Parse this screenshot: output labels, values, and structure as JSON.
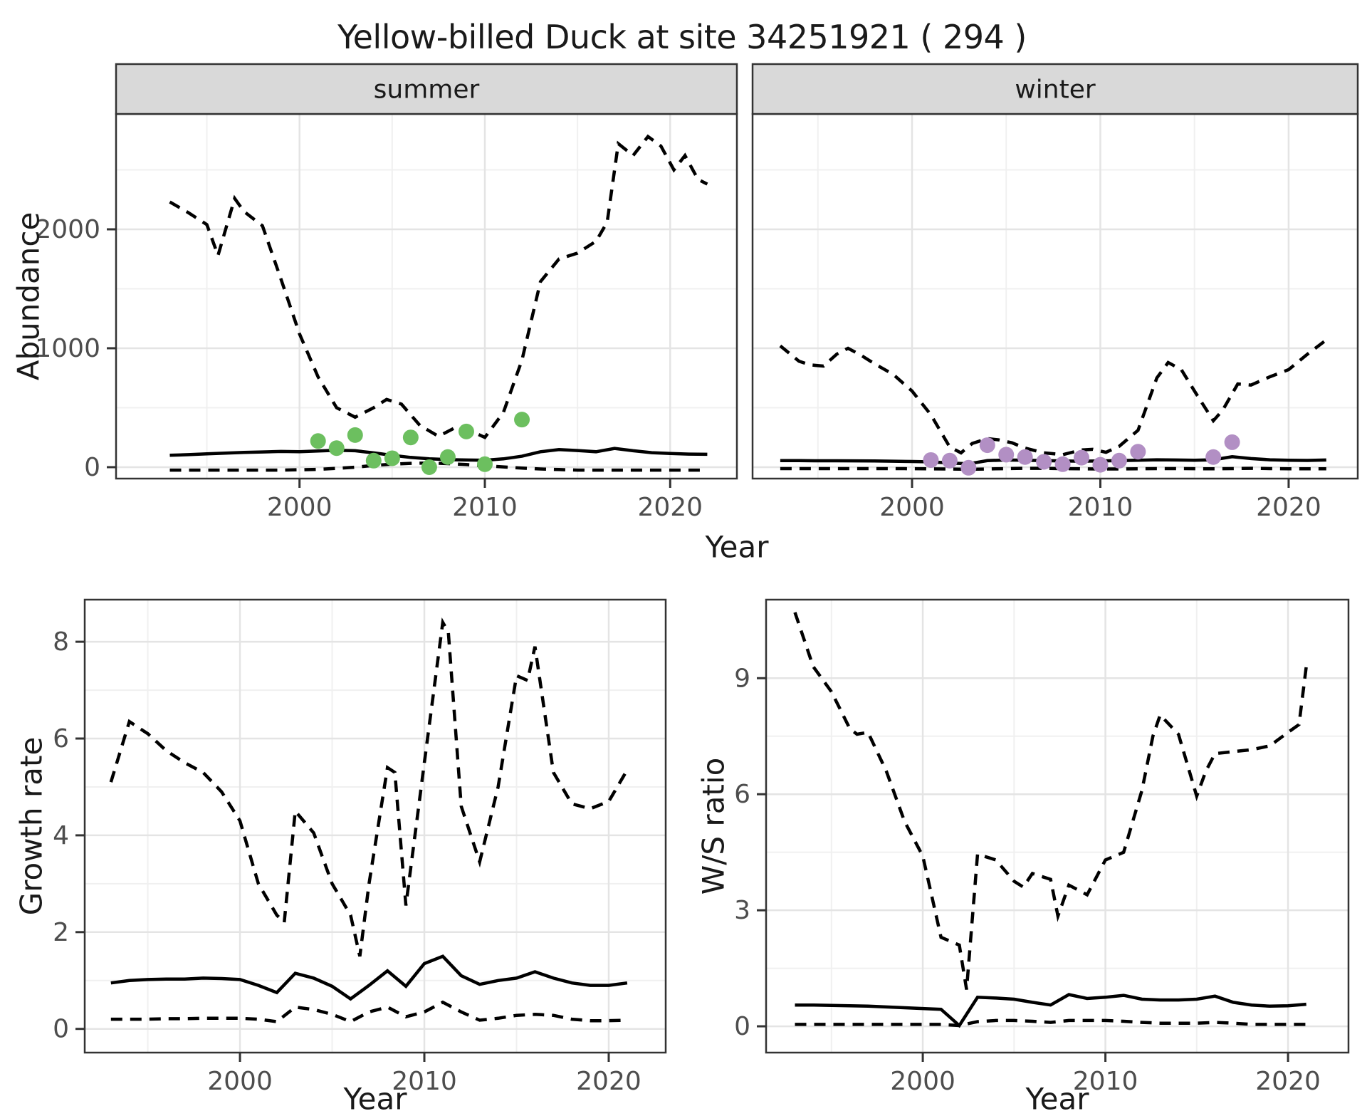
{
  "title": "Yellow-billed Duck at site 34251921 ( 294 )",
  "axis_labels": {
    "y_top": "Abundance",
    "x": "Year",
    "y_growth": "Growth rate",
    "y_ws": "W/S ratio"
  },
  "colors": {
    "summer_points": "#6CBF5F",
    "winter_points": "#B28FC4",
    "line": "#000000",
    "strip_bg": "#D9D9D9",
    "panel_border": "#333333",
    "grid_major": "#E4E4E4",
    "grid_minor": "#F0F0F0",
    "tick_label": "#4D4D4D",
    "tick_mark": "#333333"
  },
  "chart_data": [
    {
      "type": "line",
      "strip": "summer",
      "ylabel": "Abundance",
      "xlabel": "Year",
      "xlim": [
        1990.1,
        2023.6
      ],
      "ylim": [
        -96,
        2970
      ],
      "x_ticks": [
        2000,
        2010,
        2020
      ],
      "x_minor": [
        1995,
        2005,
        2015
      ],
      "y_ticks": [
        0,
        1000,
        2000
      ],
      "y_minor": [
        500,
        1500,
        2500
      ],
      "series": [
        {
          "name": "upper-ci",
          "style": "dashed",
          "x": [
            1993,
            1994,
            1995,
            1995.6,
            1996.5,
            1997,
            1998,
            1999,
            2000,
            2001,
            2002,
            2003,
            2004,
            2004.7,
            2005.5,
            2006.5,
            2007.5,
            2008.5,
            2009.3,
            2010,
            2011,
            2012,
            2013,
            2014,
            2015,
            2016,
            2016.6,
            2017.2,
            2018,
            2018.8,
            2019.5,
            2020.2,
            2020.8,
            2021.5,
            2022
          ],
          "y": [
            2230,
            2140,
            2040,
            1780,
            2260,
            2150,
            2030,
            1580,
            1120,
            760,
            500,
            420,
            500,
            570,
            530,
            350,
            260,
            340,
            300,
            250,
            460,
            900,
            1560,
            1750,
            1800,
            1900,
            2060,
            2720,
            2620,
            2780,
            2700,
            2500,
            2620,
            2420,
            2380
          ]
        },
        {
          "name": "median",
          "style": "solid",
          "x": [
            1993,
            1994,
            1995,
            1996,
            1997,
            1998,
            1999,
            2000,
            2001,
            2002,
            2003,
            2004,
            2005,
            2006,
            2007,
            2008,
            2009,
            2010,
            2011,
            2012,
            2013,
            2014,
            2015,
            2016,
            2017,
            2018,
            2019,
            2020,
            2021,
            2022
          ],
          "y": [
            100,
            105,
            112,
            118,
            124,
            128,
            132,
            130,
            136,
            142,
            138,
            120,
            100,
            82,
            70,
            64,
            60,
            58,
            70,
            92,
            130,
            148,
            140,
            130,
            158,
            138,
            122,
            115,
            110,
            108
          ]
        },
        {
          "name": "lower-ci",
          "style": "dashed",
          "x": [
            1993,
            1994,
            1995,
            1996,
            1997,
            1998,
            1999,
            2000,
            2001,
            2002,
            2003,
            2004,
            2005,
            2006,
            2007,
            2008,
            2009,
            2010,
            2011,
            2012,
            2013,
            2014,
            2015,
            2016,
            2017,
            2018,
            2019,
            2020,
            2021,
            2022
          ],
          "y": [
            -25,
            -25,
            -25,
            -25,
            -25,
            -25,
            -25,
            -22,
            -18,
            -10,
            0,
            15,
            25,
            32,
            35,
            30,
            22,
            12,
            2,
            -8,
            -15,
            -20,
            -25,
            -25,
            -25,
            -25,
            -25,
            -25,
            -25,
            -25
          ]
        }
      ],
      "points": {
        "name": "observed-summer",
        "color": "#6CBF5F",
        "x": [
          2001,
          2002,
          2003,
          2004,
          2005,
          2006,
          2007,
          2008,
          2009,
          2010,
          2012
        ],
        "y": [
          220,
          160,
          270,
          55,
          75,
          250,
          0,
          85,
          300,
          25,
          400
        ]
      }
    },
    {
      "type": "line",
      "strip": "winter",
      "ylabel": "Abundance",
      "xlabel": "Year",
      "xlim": [
        1991.53,
        2023.67
      ],
      "ylim": [
        -96,
        2970
      ],
      "x_ticks": [
        2000,
        2010,
        2020
      ],
      "x_minor": [
        1995,
        2005,
        2015
      ],
      "y_ticks": [
        0,
        1000,
        2000
      ],
      "y_minor": [
        500,
        1500,
        2500
      ],
      "series": [
        {
          "name": "upper-ci",
          "style": "dashed",
          "x": [
            1993,
            1994,
            1994.6,
            1995.3,
            1996,
            1996.6,
            1997.3,
            1998,
            1999,
            2000,
            2001,
            2002,
            2002.6,
            2003.2,
            2004,
            2004.6,
            2005.3,
            2006,
            2007,
            2008,
            2009,
            2009.6,
            2010.3,
            2011,
            2012,
            2013,
            2013.6,
            2014.3,
            2015,
            2016,
            2016.5,
            2017.3,
            2018,
            2019,
            2020,
            2021,
            2022
          ],
          "y": [
            1020,
            890,
            860,
            850,
            950,
            1000,
            940,
            870,
            780,
            640,
            440,
            170,
            120,
            200,
            240,
            230,
            205,
            160,
            120,
            105,
            145,
            150,
            125,
            175,
            310,
            750,
            880,
            820,
            640,
            390,
            480,
            700,
            690,
            760,
            820,
            950,
            1070
          ]
        },
        {
          "name": "median",
          "style": "solid",
          "x": [
            1993,
            1994,
            1995,
            1996,
            1997,
            1998,
            1999,
            2000,
            2001,
            2002,
            2003,
            2004,
            2005,
            2006,
            2007,
            2008,
            2009,
            2010,
            2011,
            2012,
            2013,
            2014,
            2015,
            2016,
            2017,
            2018,
            2019,
            2020,
            2021,
            2022
          ],
          "y": [
            55,
            55,
            54,
            54,
            53,
            52,
            50,
            48,
            45,
            35,
            28,
            55,
            60,
            58,
            55,
            52,
            50,
            52,
            55,
            58,
            62,
            60,
            58,
            62,
            88,
            72,
            62,
            58,
            57,
            60
          ]
        },
        {
          "name": "lower-ci",
          "style": "dashed",
          "x": [
            1993,
            1994,
            1995,
            1996,
            1997,
            1998,
            1999,
            2000,
            2001,
            2002,
            2003,
            2004,
            2005,
            2006,
            2007,
            2008,
            2009,
            2010,
            2011,
            2012,
            2013,
            2014,
            2015,
            2016,
            2017,
            2018,
            2019,
            2020,
            2021,
            2022
          ],
          "y": [
            -12,
            -12,
            -12,
            -12,
            -12,
            -12,
            -12,
            -13,
            -14,
            -15,
            -18,
            -15,
            -12,
            -10,
            -10,
            -12,
            -14,
            -15,
            -15,
            -14,
            -12,
            -12,
            -13,
            -14,
            -12,
            -10,
            -12,
            -14,
            -14,
            -14
          ]
        }
      ],
      "points": {
        "name": "observed-winter",
        "color": "#B28FC4",
        "x": [
          2001,
          2002,
          2003,
          2004,
          2005,
          2006,
          2007,
          2008,
          2009,
          2010,
          2011,
          2012,
          2016,
          2017
        ],
        "y": [
          60,
          55,
          -5,
          185,
          105,
          85,
          45,
          25,
          80,
          20,
          55,
          130,
          85,
          210
        ]
      }
    },
    {
      "type": "line",
      "strip": null,
      "ylabel": "Growth rate",
      "xlabel": "Year",
      "xlim": [
        1991.58,
        2023.09
      ],
      "ylim": [
        -0.49,
        8.87
      ],
      "x_ticks": [
        2000,
        2010,
        2020
      ],
      "x_minor": [
        1995,
        2005,
        2015
      ],
      "y_ticks": [
        0,
        2,
        4,
        6,
        8
      ],
      "y_minor": [
        1,
        3,
        5,
        7
      ],
      "series": [
        {
          "name": "upper-ci",
          "style": "dashed",
          "x": [
            1993,
            1994,
            1995,
            1996,
            1997,
            1998,
            1999,
            2000,
            2001,
            2002,
            2002.4,
            2003,
            2004,
            2005,
            2006,
            2006.5,
            2007,
            2008,
            2008.4,
            2009,
            2010,
            2011,
            2011.3,
            2012,
            2013,
            2014,
            2015,
            2015.6,
            2016,
            2017,
            2018,
            2019,
            2020,
            2021
          ],
          "y": [
            5.1,
            6.35,
            6.1,
            5.75,
            5.5,
            5.3,
            4.9,
            4.3,
            3.0,
            2.35,
            2.2,
            4.5,
            4.05,
            3.0,
            2.35,
            1.5,
            3.0,
            5.4,
            5.3,
            2.55,
            5.5,
            8.4,
            8.2,
            4.6,
            3.45,
            5.0,
            7.3,
            7.2,
            7.9,
            5.3,
            4.65,
            4.55,
            4.7,
            5.35
          ]
        },
        {
          "name": "median",
          "style": "solid",
          "x": [
            1993,
            1994,
            1995,
            1996,
            1997,
            1998,
            1999,
            2000,
            2001,
            2002,
            2003,
            2004,
            2005,
            2006,
            2007,
            2008,
            2009,
            2010,
            2011,
            2012,
            2013,
            2014,
            2015,
            2016,
            2017,
            2018,
            2019,
            2020,
            2021
          ],
          "y": [
            0.95,
            1.0,
            1.02,
            1.03,
            1.03,
            1.05,
            1.04,
            1.02,
            0.9,
            0.75,
            1.15,
            1.05,
            0.88,
            0.62,
            0.9,
            1.2,
            0.88,
            1.35,
            1.5,
            1.1,
            0.92,
            1.0,
            1.05,
            1.18,
            1.05,
            0.95,
            0.9,
            0.9,
            0.95
          ]
        },
        {
          "name": "lower-ci",
          "style": "dashed",
          "x": [
            1993,
            1994,
            1995,
            1996,
            1997,
            1998,
            1999,
            2000,
            2001,
            2002,
            2003,
            2004,
            2005,
            2006,
            2007,
            2008,
            2009,
            2010,
            2011,
            2012,
            2013,
            2014,
            2015,
            2016,
            2017,
            2018,
            2019,
            2020,
            2021
          ],
          "y": [
            0.2,
            0.2,
            0.2,
            0.21,
            0.21,
            0.22,
            0.22,
            0.22,
            0.2,
            0.15,
            0.45,
            0.4,
            0.3,
            0.15,
            0.35,
            0.45,
            0.25,
            0.35,
            0.55,
            0.35,
            0.18,
            0.22,
            0.28,
            0.3,
            0.28,
            0.2,
            0.17,
            0.17,
            0.18
          ]
        }
      ]
    },
    {
      "type": "line",
      "strip": null,
      "ylabel": "W/S ratio",
      "xlabel": "Year",
      "xlim": [
        1991.42,
        2023.31
      ],
      "ylim": [
        -0.68,
        11.03
      ],
      "x_ticks": [
        2000,
        2010,
        2020
      ],
      "x_minor": [
        1995,
        2005,
        2015
      ],
      "y_ticks": [
        0,
        3,
        6,
        9
      ],
      "y_minor": [
        1.5,
        4.5,
        7.5
      ],
      "series": [
        {
          "name": "upper-ci",
          "style": "dashed",
          "x": [
            1993,
            1994,
            1995,
            1996,
            1996.4,
            1997,
            1998,
            1999,
            2000,
            2001,
            2002,
            2002.4,
            2003,
            2004,
            2005,
            2005.5,
            2006,
            2007,
            2007.4,
            2008,
            2009,
            2010,
            2011,
            2012,
            2012.6,
            2013,
            2014,
            2015,
            2015.5,
            2016,
            2017,
            2018,
            2019,
            2020,
            2020.6,
            2021
          ],
          "y": [
            10.7,
            9.3,
            8.65,
            7.7,
            7.55,
            7.6,
            6.6,
            5.3,
            4.4,
            2.3,
            2.1,
            0.95,
            4.45,
            4.3,
            3.75,
            3.6,
            3.95,
            3.8,
            2.85,
            3.65,
            3.4,
            4.3,
            4.5,
            6.1,
            7.5,
            8.05,
            7.55,
            5.95,
            6.6,
            7.05,
            7.1,
            7.15,
            7.25,
            7.6,
            7.8,
            9.3
          ]
        },
        {
          "name": "median",
          "style": "solid",
          "x": [
            1993,
            1994,
            1995,
            1996,
            1997,
            1998,
            1999,
            2000,
            2001,
            2002,
            2003,
            2004,
            2005,
            2006,
            2007,
            2008,
            2009,
            2010,
            2011,
            2012,
            2013,
            2014,
            2015,
            2016,
            2017,
            2018,
            2019,
            2020,
            2021
          ],
          "y": [
            0.55,
            0.55,
            0.54,
            0.53,
            0.52,
            0.5,
            0.48,
            0.46,
            0.44,
            0.02,
            0.75,
            0.73,
            0.7,
            0.62,
            0.55,
            0.82,
            0.72,
            0.75,
            0.8,
            0.7,
            0.68,
            0.68,
            0.7,
            0.78,
            0.62,
            0.55,
            0.52,
            0.53,
            0.57
          ]
        },
        {
          "name": "lower-ci",
          "style": "dashed",
          "x": [
            1993,
            1994,
            1995,
            1996,
            1997,
            1998,
            1999,
            2000,
            2001,
            2002,
            2003,
            2004,
            2005,
            2006,
            2007,
            2008,
            2009,
            2010,
            2011,
            2012,
            2013,
            2014,
            2015,
            2016,
            2017,
            2018,
            2019,
            2020,
            2021
          ],
          "y": [
            0.05,
            0.05,
            0.05,
            0.05,
            0.05,
            0.05,
            0.05,
            0.05,
            0.05,
            0.02,
            0.12,
            0.15,
            0.15,
            0.13,
            0.1,
            0.15,
            0.15,
            0.15,
            0.13,
            0.1,
            0.08,
            0.08,
            0.08,
            0.1,
            0.08,
            0.05,
            0.05,
            0.05,
            0.05
          ]
        }
      ]
    }
  ]
}
